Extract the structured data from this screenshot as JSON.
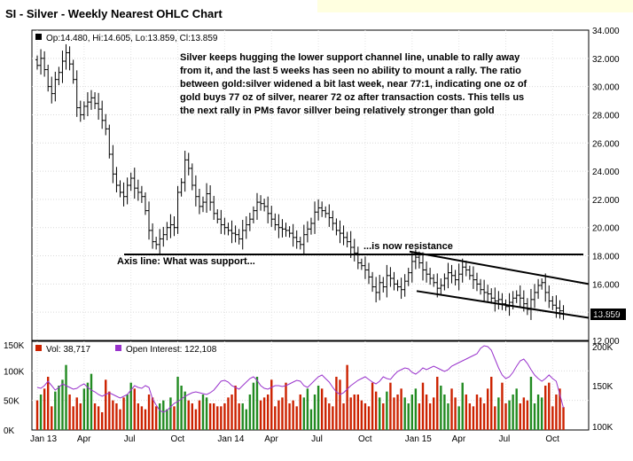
{
  "title": "SI - Silver - Weekly Nearest OHLC Chart",
  "colors": {
    "background": "#ffffff",
    "price": "#000000",
    "vol_up": "#228B22",
    "vol_down": "#cc2200",
    "open_interest": "#9933cc",
    "last_price_tag_bg": "#000000",
    "last_price_tag_text": "#ffffff",
    "vol_swatch": "#cc2200",
    "oi_swatch": "#9933cc"
  },
  "price_panel": {
    "ohlc_label": "Op:14.480, Hi:14.605, Lo:13.859, Cl:13.859",
    "last_price": "13.859",
    "commentary": [
      "Silver keeps hugging the lower support channel line, unable to rally away",
      "from it, and the last 5 weeks has seen no ability to mount a rally.  The ratio",
      "between gold:silver widened a bit last week, near 77:1, indicating one oz of",
      "gold buys 77 oz of silver, nearer 72 oz after transaction costs.  This tells us",
      "the next rally in PMs favor sillver being relatively stronger than gold"
    ],
    "annotation_support": "Axis line:  What was support...",
    "annotation_resistance": "...is now resistance",
    "axis_labels": [
      "34.000",
      "32.000",
      "30.000",
      "28.000",
      "26.000",
      "24.000",
      "22.000",
      "20.000",
      "18.000",
      "16.000",
      "14.000",
      "12.000"
    ]
  },
  "volume_panel": {
    "vol_label": "Vol: 38,717",
    "oi_label": "Open Interest: 122,108",
    "left_axis_labels": [
      "150K",
      "100K",
      "50K",
      "0K"
    ],
    "right_axis_labels": [
      "200K",
      "150K",
      "100K"
    ]
  },
  "x_axis_labels": [
    "Jan 13",
    "Apr",
    "Jul",
    "Oct",
    "Jan 14",
    "Apr",
    "Jul",
    "Oct",
    "Jan 15",
    "Apr",
    "Jul",
    "Oct"
  ],
  "chart_data": {
    "type": "ohlc",
    "title": "SI - Silver - Weekly Nearest OHLC Chart",
    "period": "weekly",
    "x_start": "Jan 2013",
    "ylim": [
      12,
      34
    ],
    "close_series": [
      31.5,
      32.0,
      31.2,
      30.0,
      29.5,
      30.5,
      31.0,
      31.8,
      32.4,
      31.6,
      30.5,
      28.5,
      28.0,
      28.6,
      28.9,
      29.2,
      28.8,
      28.4,
      27.6,
      27.0,
      25.2,
      23.8,
      23.0,
      22.5,
      22.2,
      23.0,
      23.5,
      22.8,
      22.5,
      22.2,
      21.2,
      19.8,
      19.0,
      18.8,
      19.2,
      19.5,
      20.0,
      20.2,
      20.0,
      22.5,
      23.2,
      24.8,
      24.2,
      23.0,
      22.2,
      21.5,
      21.8,
      22.4,
      21.8,
      21.0,
      20.6,
      20.2,
      20.0,
      19.8,
      19.6,
      19.5,
      19.2,
      19.8,
      20.2,
      20.6,
      21.2,
      21.8,
      21.7,
      21.5,
      21.0,
      20.6,
      20.2,
      20.0,
      19.9,
      19.8,
      19.6,
      19.3,
      19.0,
      18.8,
      19.5,
      19.9,
      20.3,
      21.1,
      21.4,
      21.2,
      21.0,
      20.7,
      20.3,
      19.8,
      19.6,
      19.3,
      19.0,
      18.6,
      18.2,
      17.5,
      17.3,
      17.0,
      16.5,
      15.8,
      15.4,
      16.1,
      15.8,
      16.6,
      16.4,
      16.0,
      15.8,
      15.6,
      16.2,
      16.8,
      17.6,
      17.9,
      17.5,
      17.0,
      16.7,
      16.4,
      16.1,
      15.7,
      15.9,
      16.4,
      16.8,
      16.6,
      16.3,
      16.7,
      17.2,
      17.0,
      16.6,
      16.3,
      16.0,
      15.6,
      15.4,
      15.3,
      15.0,
      14.8,
      14.9,
      14.6,
      14.4,
      14.7,
      15.0,
      15.2,
      15.0,
      14.6,
      14.2,
      14.9,
      15.4,
      15.9,
      16.1,
      15.4,
      14.8,
      14.5,
      14.3,
      14.1,
      13.859
    ],
    "series": [
      {
        "name": "Vol",
        "units": "contracts",
        "values": [
          50,
          60,
          70,
          90,
          40,
          65,
          75,
          85,
          110,
          60,
          40,
          55,
          45,
          70,
          80,
          95,
          45,
          40,
          30,
          85,
          65,
          50,
          45,
          35,
          55,
          60,
          80,
          70,
          45,
          40,
          35,
          60,
          55,
          40,
          45,
          50,
          35,
          55,
          40,
          90,
          75,
          65,
          50,
          45,
          35,
          50,
          60,
          55,
          45,
          45,
          40,
          40,
          45,
          55,
          60,
          75,
          45,
          45,
          35,
          60,
          80,
          90,
          50,
          55,
          60,
          85,
          40,
          50,
          55,
          80,
          45,
          50,
          40,
          60,
          55,
          70,
          35,
          60,
          75,
          70,
          55,
          45,
          40,
          90,
          85,
          45,
          110,
          55,
          60,
          60,
          50,
          45,
          40,
          80,
          65,
          55,
          45,
          65,
          80,
          55,
          60,
          70,
          55,
          45,
          60,
          70,
          45,
          80,
          60,
          45,
          55,
          90,
          75,
          60,
          45,
          70,
          55,
          40,
          80,
          60,
          45,
          40,
          60,
          55,
          45,
          70,
          90,
          40,
          55,
          80,
          45,
          50,
          60,
          70,
          45,
          55,
          50,
          90,
          45,
          60,
          55,
          75,
          80,
          40,
          60,
          70,
          38.7
        ]
      },
      {
        "name": "Open Interest",
        "units": "contracts",
        "values": [
          148,
          147,
          150,
          155,
          150,
          145,
          148,
          152,
          150,
          148,
          146,
          147,
          150,
          152,
          148,
          145,
          143,
          140,
          138,
          140,
          142,
          140,
          138,
          136,
          138,
          140,
          145,
          150,
          148,
          147,
          150,
          148,
          135,
          128,
          122,
          120,
          122,
          126,
          130,
          132,
          135,
          138,
          140,
          142,
          143,
          142,
          141,
          140,
          142,
          145,
          150,
          155,
          156,
          154,
          150,
          148,
          146,
          150,
          154,
          158,
          160,
          156,
          150,
          147,
          146,
          148,
          150,
          150,
          149,
          150,
          152,
          154,
          156,
          155,
          150,
          148,
          152,
          156,
          160,
          162,
          158,
          154,
          148,
          143,
          140,
          142,
          146,
          150,
          153,
          156,
          158,
          160,
          157,
          154,
          152,
          155,
          160,
          158,
          157,
          162,
          166,
          168,
          170,
          169,
          165,
          163,
          166,
          170,
          168,
          170,
          172,
          170,
          168,
          166,
          168,
          172,
          174,
          176,
          178,
          180,
          182,
          184,
          186,
          192,
          195,
          194,
          190,
          180,
          170,
          162,
          158,
          160,
          165,
          172,
          178,
          180,
          175,
          168,
          162,
          158,
          155,
          158,
          162,
          158,
          155,
          140,
          125,
          122.108
        ]
      }
    ]
  }
}
